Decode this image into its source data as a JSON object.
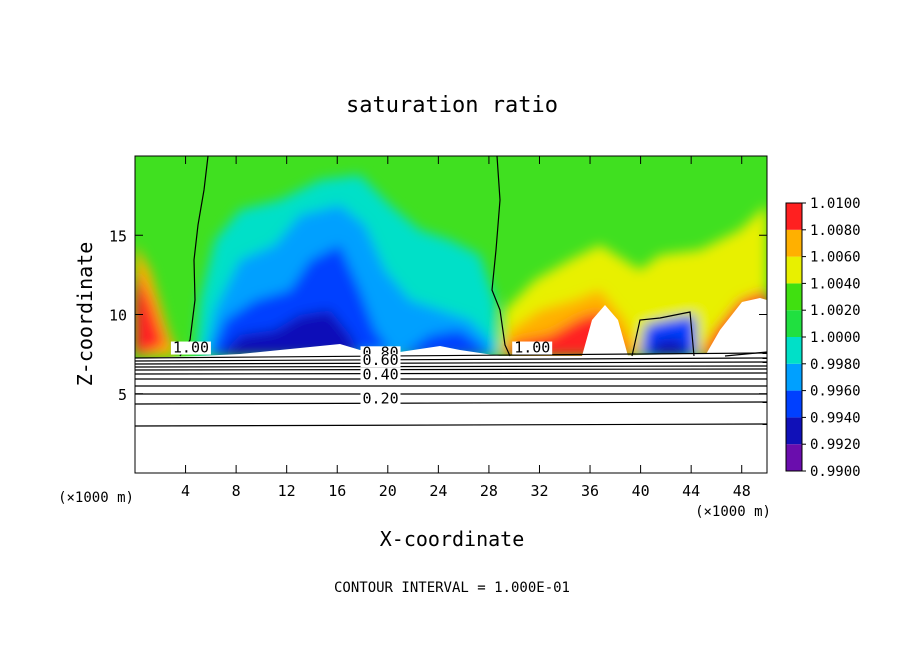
{
  "chart_data": {
    "type": "heatmap",
    "title": "saturation ratio",
    "xlabel": "X-coordinate",
    "ylabel": "Z-coordinate",
    "x_unit": "(×1000 m)",
    "x_unit_right": "(×1000 m)",
    "footer": "CONTOUR INTERVAL = 1.000E-01",
    "xlim": [
      0,
      50
    ],
    "ylim": [
      0,
      20
    ],
    "x_ticks": [
      4,
      8,
      12,
      16,
      20,
      24,
      28,
      32,
      36,
      40,
      44,
      48
    ],
    "x_tick_labels": [
      "4",
      "8",
      "12",
      "16",
      "20",
      "24",
      "28",
      "32",
      "36",
      "40",
      "44",
      "48"
    ],
    "y_ticks": [
      5,
      10,
      15
    ],
    "y_tick_labels": [
      "5",
      "10",
      "15"
    ],
    "colorbar": {
      "values": [
        0.99,
        0.992,
        0.994,
        0.996,
        0.998,
        1.0,
        1.002,
        1.004,
        1.006,
        1.008,
        1.01
      ],
      "labels": [
        "0.9900",
        "0.9920",
        "0.9940",
        "0.9960",
        "0.9980",
        "1.0000",
        "1.0020",
        "1.0040",
        "1.0060",
        "1.0080",
        "1.0100"
      ],
      "colors": [
        "#6a0dad",
        "#1010b8",
        "#0040ff",
        "#00a0ff",
        "#00e0c8",
        "#20e040",
        "#40e010",
        "#e8f000",
        "#ffb000",
        "#ff2020",
        "#ff8a8a"
      ]
    },
    "contour_labels": [
      {
        "text": "0.80",
        "x": 18.0,
        "y": 7.3
      },
      {
        "text": "0.60",
        "x": 18.0,
        "y": 6.8
      },
      {
        "text": "0.40",
        "x": 18.0,
        "y": 5.9
      },
      {
        "text": "0.20",
        "x": 18.0,
        "y": 4.4
      },
      {
        "text": "1.00",
        "x": 3.0,
        "y": 7.6
      },
      {
        "text": "1.00",
        "x": 30.0,
        "y": 7.6
      }
    ]
  }
}
